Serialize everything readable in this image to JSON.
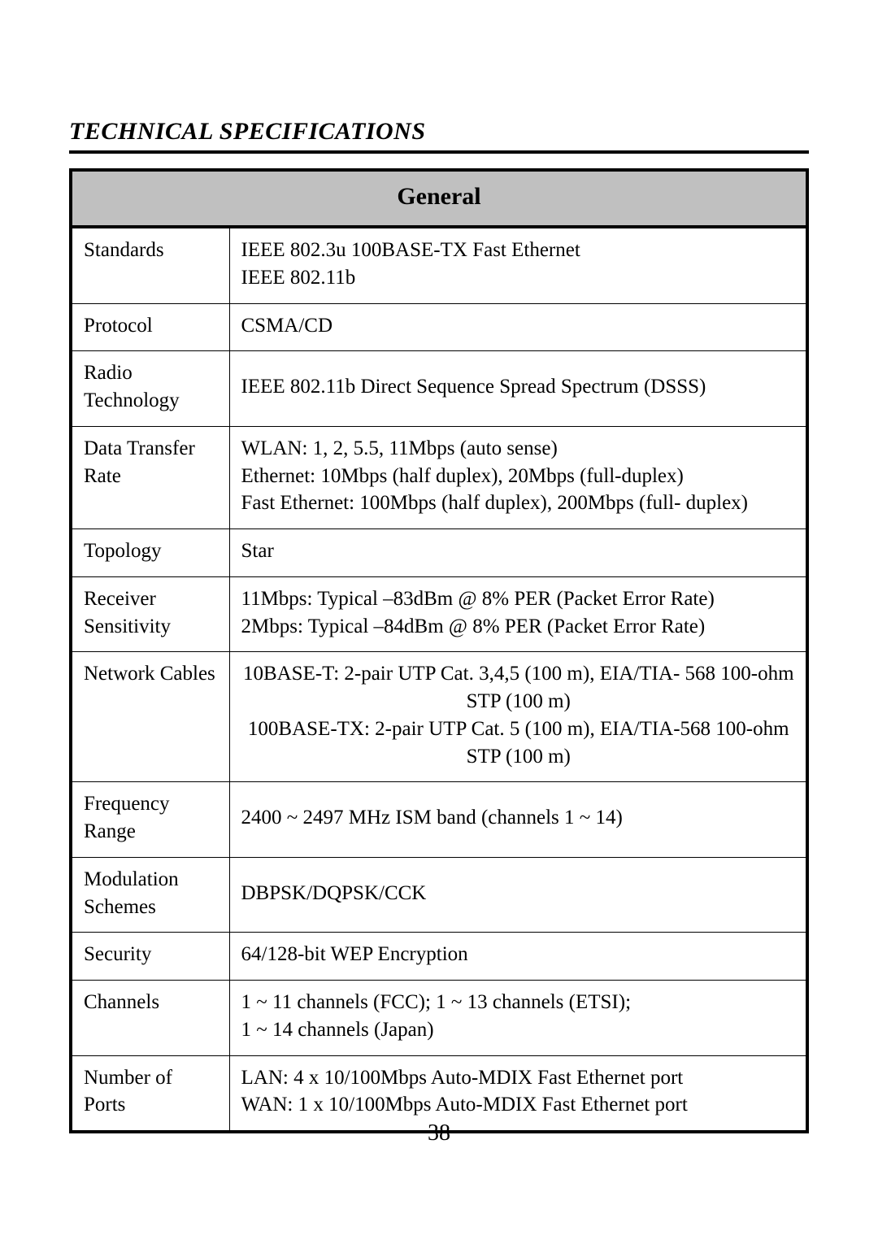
{
  "page": {
    "section_title": "TECHNICAL SPECIFICATIONS",
    "page_number": "38"
  },
  "table": {
    "header": "General",
    "header_bg": "#c0c0c0",
    "border_color": "#000000",
    "rows": [
      {
        "label": "Standards",
        "lines": [
          "IEEE 802.3u 100BASE-TX Fast Ethernet",
          "IEEE 802.11b"
        ]
      },
      {
        "label": "Protocol",
        "lines": [
          "CSMA/CD"
        ]
      },
      {
        "label": "Radio Technology",
        "lines": [
          "IEEE 802.11b Direct Sequence Spread Spectrum (DSSS)"
        ],
        "vcenter": true
      },
      {
        "label": "Data Transfer Rate",
        "lines": [
          "WLAN: 1, 2, 5.5, 11Mbps (auto sense)",
          "Ethernet: 10Mbps (half duplex), 20Mbps (full-duplex)",
          "Fast Ethernet: 100Mbps (half duplex), 200Mbps (full- duplex)"
        ]
      },
      {
        "label": "Topology",
        "lines": [
          "Star"
        ]
      },
      {
        "label": "Receiver Sensitivity",
        "lines": [
          "11Mbps: Typical –83dBm @ 8% PER (Packet Error Rate)",
          "2Mbps: Typical –84dBm @ 8% PER (Packet Error Rate)"
        ]
      },
      {
        "label": "Network Cables",
        "lines": [
          "10BASE-T: 2-pair UTP Cat. 3,4,5 (100 m), EIA/TIA- 568 100-ohm STP (100 m)",
          "100BASE-TX: 2-pair UTP Cat. 5 (100 m), EIA/TIA-568 100-ohm STP (100 m)"
        ],
        "center_value": true
      },
      {
        "label": "Frequency Range",
        "lines": [
          "2400 ~ 2497 MHz ISM band (channels 1 ~ 14)"
        ],
        "vcenter": true
      },
      {
        "label": "Modulation Schemes",
        "lines": [
          "DBPSK/DQPSK/CCK"
        ],
        "vcenter": true
      },
      {
        "label": "Security",
        "lines": [
          "64/128-bit WEP Encryption"
        ]
      },
      {
        "label": "Channels",
        "lines": [
          "1 ~ 11 channels (FCC); 1 ~ 13 channels (ETSI);",
          "1 ~ 14 channels (Japan)"
        ]
      },
      {
        "label": "Number of Ports",
        "lines": [
          "LAN: 4 x 10/100Mbps Auto-MDIX Fast Ethernet port",
          "WAN: 1 x 10/100Mbps Auto-MDIX Fast Ethernet port"
        ]
      }
    ]
  }
}
